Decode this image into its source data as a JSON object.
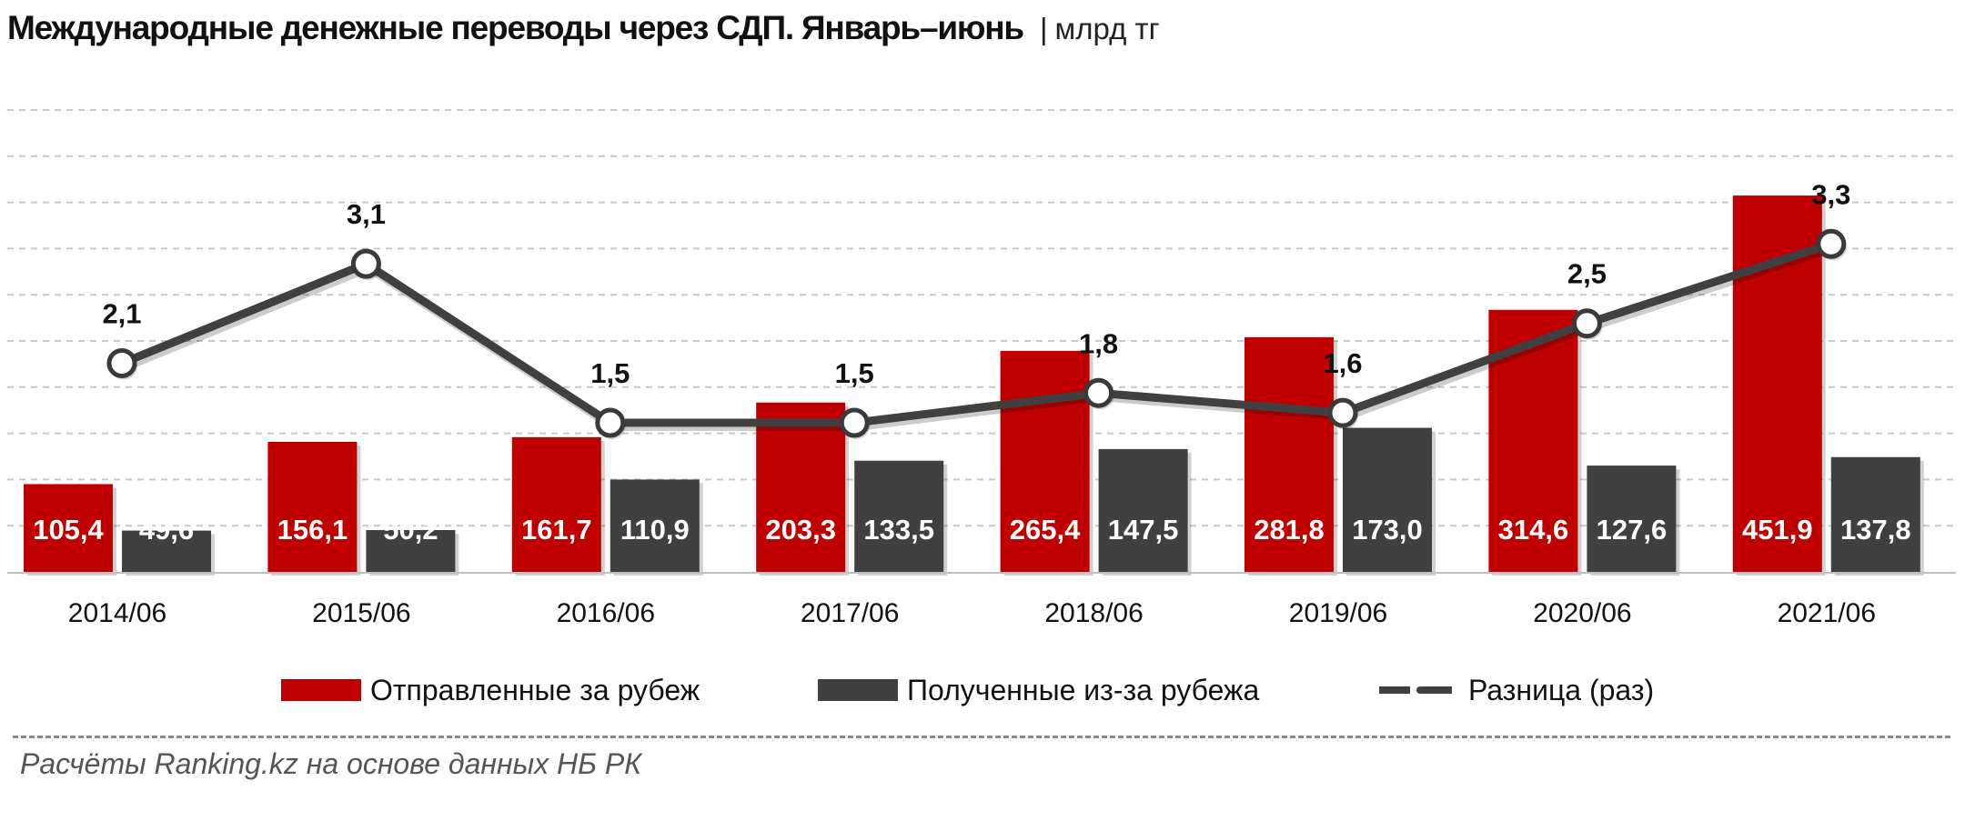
{
  "chart_data": {
    "type": "bar",
    "title": "Международные денежные переводы через СДП. Январь–июнь",
    "unit": "млрд тг",
    "categories": [
      "2014/06",
      "2015/06",
      "2016/06",
      "2017/06",
      "2018/06",
      "2019/06",
      "2020/06",
      "2021/06"
    ],
    "series": [
      {
        "name": "Отправленные за рубеж",
        "kind": "bar",
        "color": "#c00000",
        "values": [
          105.4,
          156.1,
          161.7,
          203.3,
          265.4,
          281.8,
          314.6,
          451.9
        ],
        "labels": [
          "105,4",
          "156,1",
          "161,7",
          "203,3",
          "265,4",
          "281,8",
          "314,6",
          "451,9"
        ]
      },
      {
        "name": "Полученные из-за рубежа",
        "kind": "bar",
        "color": "#404040",
        "values": [
          49.6,
          50.2,
          110.9,
          133.5,
          147.5,
          173.0,
          127.6,
          137.8
        ],
        "labels": [
          "49,6",
          "50,2",
          "110,9",
          "133,5",
          "147,5",
          "173,0",
          "127,6",
          "137,8"
        ]
      },
      {
        "name": "Разница (раз)",
        "kind": "line",
        "color": "#404040",
        "values": [
          2.1,
          3.1,
          1.5,
          1.5,
          1.8,
          1.6,
          2.5,
          3.3
        ],
        "labels": [
          "2,1",
          "3,1",
          "1,5",
          "1,5",
          "1,8",
          "1,6",
          "2,5",
          "3,3"
        ]
      }
    ],
    "ylim": [
      0,
      500
    ],
    "y2lim": [
      0,
      4.3
    ],
    "grid": true,
    "legend": "bottom"
  },
  "source": "Расчёты Ranking.kz на основе данных  НБ РК"
}
